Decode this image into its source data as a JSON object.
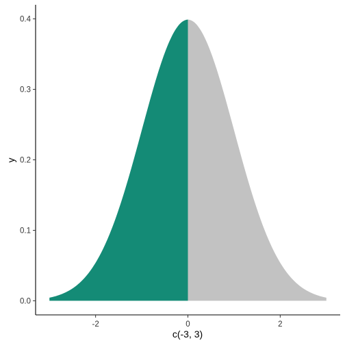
{
  "chart_data": {
    "type": "area",
    "title": "",
    "xlabel": "c(-3, 3)",
    "ylabel": "y",
    "xlim": [
      -3.3,
      3.3
    ],
    "ylim": [
      -0.02,
      0.42
    ],
    "x_ticks": [
      -2,
      0,
      2
    ],
    "x_tick_labels": [
      "-2",
      "0",
      "2"
    ],
    "y_ticks": [
      0.0,
      0.1,
      0.2,
      0.3,
      0.4
    ],
    "y_tick_labels": [
      "0.0",
      "0.1",
      "0.2",
      "0.3",
      "0.4"
    ],
    "grid": false,
    "legend": "none",
    "curve": "standard normal density",
    "x": [
      -3.0,
      -2.5,
      -2.0,
      -1.5,
      -1.0,
      -0.5,
      0.0,
      0.5,
      1.0,
      1.5,
      2.0,
      2.5,
      3.0
    ],
    "y": [
      0.0044,
      0.0175,
      0.054,
      0.1295,
      0.242,
      0.3521,
      0.3989,
      0.3521,
      0.242,
      0.1295,
      0.054,
      0.0175,
      0.0044
    ],
    "series": [
      {
        "x_range": [
          -3,
          0
        ],
        "color": "#148B76"
      },
      {
        "x_range": [
          0,
          3
        ],
        "color": "#C2C2C2"
      }
    ]
  }
}
